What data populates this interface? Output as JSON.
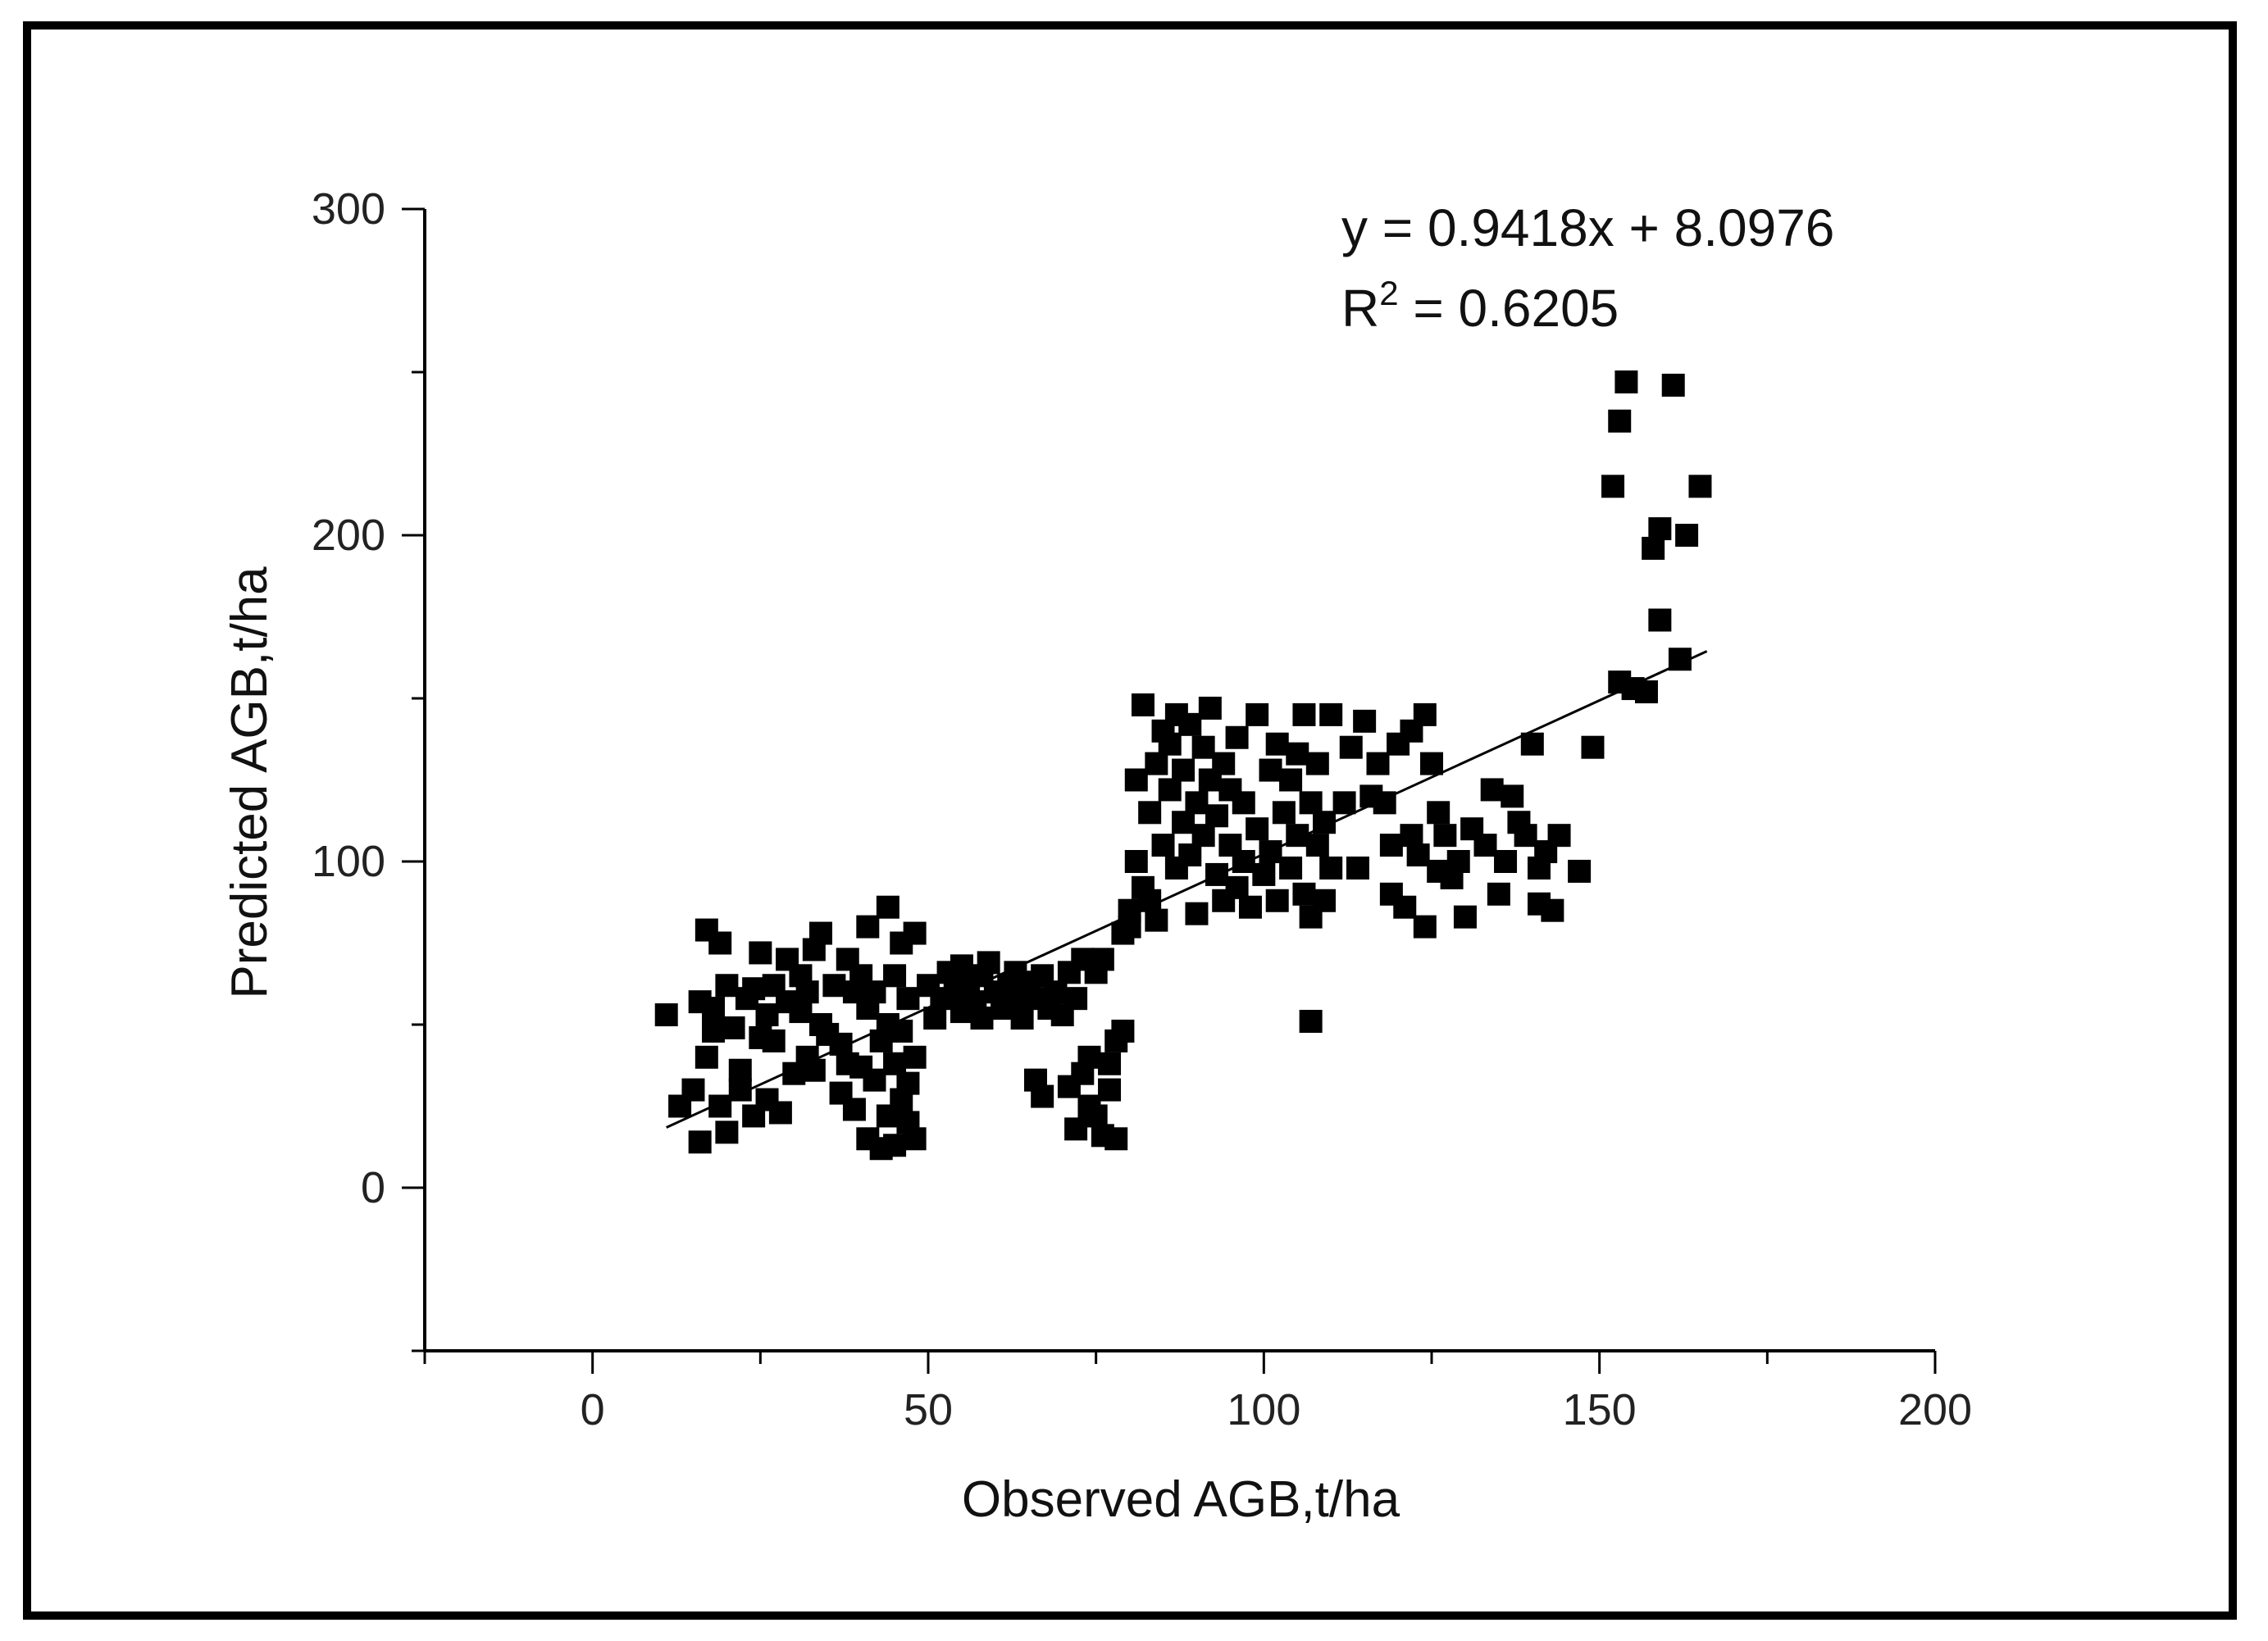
{
  "chart_data": {
    "type": "scatter",
    "title": "",
    "xlabel": "Observed AGB,t/ha",
    "ylabel": "Predicted AGB,t/ha",
    "xlim": [
      -25,
      200
    ],
    "ylim": [
      -50,
      300
    ],
    "x_ticks": [
      0,
      50,
      100,
      150,
      200
    ],
    "y_ticks": [
      0,
      100,
      200,
      300
    ],
    "x_tick_labels": [
      "0",
      "50",
      "100",
      "150",
      "200"
    ],
    "y_tick_labels": [
      "0",
      "100",
      "200",
      "300"
    ],
    "grid": false,
    "legend": "none",
    "marker_color": "#000000",
    "annotations": {
      "equation": "y = 0.9418x + 8.0976",
      "r2_prefix": "R",
      "r2_sup": "2",
      "r2_suffix": " = 0.6205"
    },
    "trendline": {
      "slope": 0.9418,
      "intercept": 8.0976,
      "x_range": [
        11,
        166
      ]
    },
    "series": [
      {
        "points": [
          [
            11,
            53
          ],
          [
            13,
            25
          ],
          [
            15,
            30
          ],
          [
            16,
            14
          ],
          [
            16,
            57
          ],
          [
            17,
            79
          ],
          [
            17,
            40
          ],
          [
            18,
            48
          ],
          [
            18,
            55
          ],
          [
            19,
            75
          ],
          [
            19,
            25
          ],
          [
            20,
            62
          ],
          [
            20,
            17
          ],
          [
            21,
            49
          ],
          [
            22,
            36
          ],
          [
            22,
            30
          ],
          [
            23,
            58
          ],
          [
            24,
            22
          ],
          [
            24,
            61
          ],
          [
            25,
            72
          ],
          [
            25,
            46
          ],
          [
            26,
            27
          ],
          [
            26,
            53
          ],
          [
            27,
            45
          ],
          [
            27,
            62
          ],
          [
            28,
            23
          ],
          [
            29,
            57
          ],
          [
            29,
            70
          ],
          [
            30,
            35
          ],
          [
            31,
            54
          ],
          [
            31,
            65
          ],
          [
            32,
            40
          ],
          [
            32,
            60
          ],
          [
            33,
            73
          ],
          [
            33,
            36
          ],
          [
            34,
            78
          ],
          [
            34,
            50
          ],
          [
            35,
            47
          ],
          [
            36,
            62
          ],
          [
            37,
            44
          ],
          [
            37,
            29
          ],
          [
            38,
            70
          ],
          [
            38,
            38
          ],
          [
            39,
            60
          ],
          [
            39,
            24
          ],
          [
            40,
            65
          ],
          [
            40,
            37
          ],
          [
            41,
            80
          ],
          [
            41,
            15
          ],
          [
            41,
            55
          ],
          [
            42,
            33
          ],
          [
            42,
            60
          ],
          [
            43,
            12
          ],
          [
            43,
            45
          ],
          [
            44,
            86
          ],
          [
            44,
            22
          ],
          [
            44,
            50
          ],
          [
            45,
            65
          ],
          [
            45,
            13
          ],
          [
            45,
            38
          ],
          [
            46,
            75
          ],
          [
            46,
            48
          ],
          [
            46,
            27
          ],
          [
            47,
            20
          ],
          [
            47,
            58
          ],
          [
            47,
            32
          ],
          [
            48,
            15
          ],
          [
            48,
            78
          ],
          [
            48,
            40
          ],
          [
            50,
            62
          ],
          [
            51,
            52
          ],
          [
            52,
            58
          ],
          [
            53,
            66
          ],
          [
            54,
            60
          ],
          [
            55,
            54
          ],
          [
            55,
            68
          ],
          [
            56,
            63
          ],
          [
            57,
            57
          ],
          [
            58,
            65
          ],
          [
            58,
            52
          ],
          [
            59,
            69
          ],
          [
            60,
            60
          ],
          [
            61,
            55
          ],
          [
            62,
            62
          ],
          [
            63,
            66
          ],
          [
            63,
            57
          ],
          [
            64,
            52
          ],
          [
            65,
            63
          ],
          [
            66,
            33
          ],
          [
            66,
            58
          ],
          [
            67,
            28
          ],
          [
            67,
            65
          ],
          [
            68,
            55
          ],
          [
            69,
            60
          ],
          [
            70,
            53
          ],
          [
            71,
            66
          ],
          [
            71,
            31
          ],
          [
            72,
            18
          ],
          [
            72,
            58
          ],
          [
            73,
            35
          ],
          [
            73,
            70
          ],
          [
            74,
            25
          ],
          [
            74,
            40
          ],
          [
            75,
            66
          ],
          [
            75,
            22
          ],
          [
            76,
            70
          ],
          [
            76,
            16
          ],
          [
            77,
            38
          ],
          [
            77,
            30
          ],
          [
            78,
            15
          ],
          [
            78,
            45
          ],
          [
            79,
            48
          ],
          [
            79,
            78
          ],
          [
            80,
            85
          ],
          [
            80,
            80
          ],
          [
            81,
            100
          ],
          [
            81,
            125
          ],
          [
            82,
            92
          ],
          [
            82,
            148
          ],
          [
            83,
            115
          ],
          [
            83,
            88
          ],
          [
            84,
            130
          ],
          [
            84,
            82
          ],
          [
            85,
            140
          ],
          [
            85,
            105
          ],
          [
            86,
            122
          ],
          [
            86,
            136
          ],
          [
            87,
            98
          ],
          [
            87,
            145
          ],
          [
            88,
            112
          ],
          [
            88,
            128
          ],
          [
            89,
            102
          ],
          [
            89,
            142
          ],
          [
            90,
            118
          ],
          [
            90,
            84
          ],
          [
            91,
            108
          ],
          [
            91,
            135
          ],
          [
            92,
            147
          ],
          [
            92,
            125
          ],
          [
            93,
            96
          ],
          [
            93,
            114
          ],
          [
            94,
            130
          ],
          [
            94,
            88
          ],
          [
            95,
            105
          ],
          [
            95,
            122
          ],
          [
            96,
            92
          ],
          [
            96,
            138
          ],
          [
            97,
            100
          ],
          [
            97,
            118
          ],
          [
            98,
            86
          ],
          [
            99,
            145
          ],
          [
            99,
            110
          ],
          [
            100,
            96
          ],
          [
            101,
            128
          ],
          [
            101,
            103
          ],
          [
            102,
            136
          ],
          [
            102,
            88
          ],
          [
            103,
            115
          ],
          [
            104,
            125
          ],
          [
            104,
            98
          ],
          [
            105,
            133
          ],
          [
            105,
            108
          ],
          [
            106,
            90
          ],
          [
            106,
            145
          ],
          [
            107,
            83
          ],
          [
            107,
            118
          ],
          [
            107,
            51
          ],
          [
            108,
            105
          ],
          [
            108,
            130
          ],
          [
            109,
            88
          ],
          [
            109,
            112
          ],
          [
            110,
            145
          ],
          [
            110,
            98
          ],
          [
            112,
            118
          ],
          [
            113,
            135
          ],
          [
            114,
            98
          ],
          [
            115,
            143
          ],
          [
            116,
            120
          ],
          [
            117,
            130
          ],
          [
            118,
            118
          ],
          [
            119,
            90
          ],
          [
            119,
            105
          ],
          [
            120,
            136
          ],
          [
            121,
            86
          ],
          [
            122,
            108
          ],
          [
            122,
            140
          ],
          [
            123,
            102
          ],
          [
            124,
            145
          ],
          [
            124,
            80
          ],
          [
            125,
            130
          ],
          [
            126,
            115
          ],
          [
            126,
            97
          ],
          [
            127,
            108
          ],
          [
            128,
            95
          ],
          [
            129,
            100
          ],
          [
            130,
            83
          ],
          [
            131,
            110
          ],
          [
            133,
            105
          ],
          [
            134,
            122
          ],
          [
            135,
            90
          ],
          [
            136,
            100
          ],
          [
            137,
            120
          ],
          [
            138,
            112
          ],
          [
            139,
            108
          ],
          [
            140,
            136
          ],
          [
            141,
            98
          ],
          [
            141,
            87
          ],
          [
            142,
            103
          ],
          [
            143,
            85
          ],
          [
            144,
            108
          ],
          [
            147,
            97
          ],
          [
            149,
            135
          ],
          [
            152,
            215
          ],
          [
            153,
            235
          ],
          [
            153,
            155
          ],
          [
            154,
            247
          ],
          [
            155,
            153
          ],
          [
            157,
            152
          ],
          [
            158,
            196
          ],
          [
            159,
            202
          ],
          [
            159,
            174
          ],
          [
            161,
            246
          ],
          [
            162,
            162
          ],
          [
            163,
            200
          ],
          [
            165,
            215
          ]
        ]
      }
    ]
  }
}
